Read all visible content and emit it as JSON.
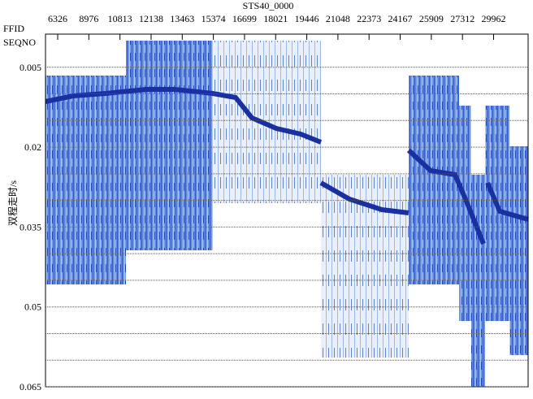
{
  "chart_data": {
    "type": "seismic-section",
    "title": "STS40_0000",
    "x_axis_names": [
      "FFID",
      "SEQNO"
    ],
    "ylabel": "双程走时/s",
    "x_labels": [
      6326,
      8976,
      10813,
      12138,
      13463,
      15374,
      16699,
      18021,
      19446,
      21048,
      22373,
      24167,
      25909,
      27312,
      29962
    ],
    "ylim": [
      0,
      0.065
    ],
    "yticks": [
      0.005,
      0.02,
      0.035,
      0.05,
      0.065
    ],
    "minor_yticks": [
      0.01,
      0.015,
      0.025,
      0.03,
      0.04,
      0.045,
      0.055,
      0.06
    ],
    "grid": true,
    "color": "#1a2fa0"
  }
}
